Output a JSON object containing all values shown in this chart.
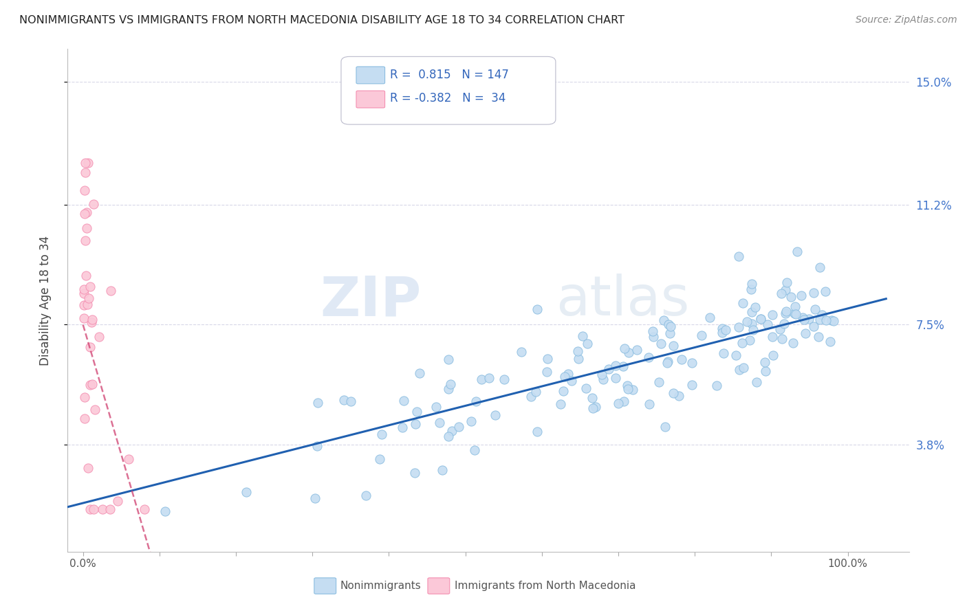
{
  "title": "NONIMMIGRANTS VS IMMIGRANTS FROM NORTH MACEDONIA DISABILITY AGE 18 TO 34 CORRELATION CHART",
  "source": "Source: ZipAtlas.com",
  "ylabel": "Disability Age 18 to 34",
  "ytick_positions": [
    0.038,
    0.075,
    0.112,
    0.15
  ],
  "ytick_labels": [
    "3.8%",
    "7.5%",
    "11.2%",
    "15.0%"
  ],
  "blue_color": "#8bbde0",
  "blue_fill": "#c5ddf2",
  "pink_color": "#f48fb1",
  "pink_fill": "#fbc8d8",
  "blue_R": 0.815,
  "blue_N": 147,
  "pink_R": -0.382,
  "pink_N": 34,
  "legend_label_blue": "Nonimmigrants",
  "legend_label_pink": "Immigrants from North Macedonia",
  "watermark_zip": "ZIP",
  "watermark_atlas": "atlas",
  "grid_color": "#d8d8e8",
  "blue_line_color": "#2060b0",
  "pink_line_color": "#d04070",
  "blue_line_intercept": 0.02,
  "blue_line_slope": 0.06,
  "pink_line_intercept": 0.075,
  "pink_line_slope": -0.8,
  "ylim_low": 0.005,
  "ylim_high": 0.16,
  "xlim_low": -0.02,
  "xlim_high": 1.08
}
